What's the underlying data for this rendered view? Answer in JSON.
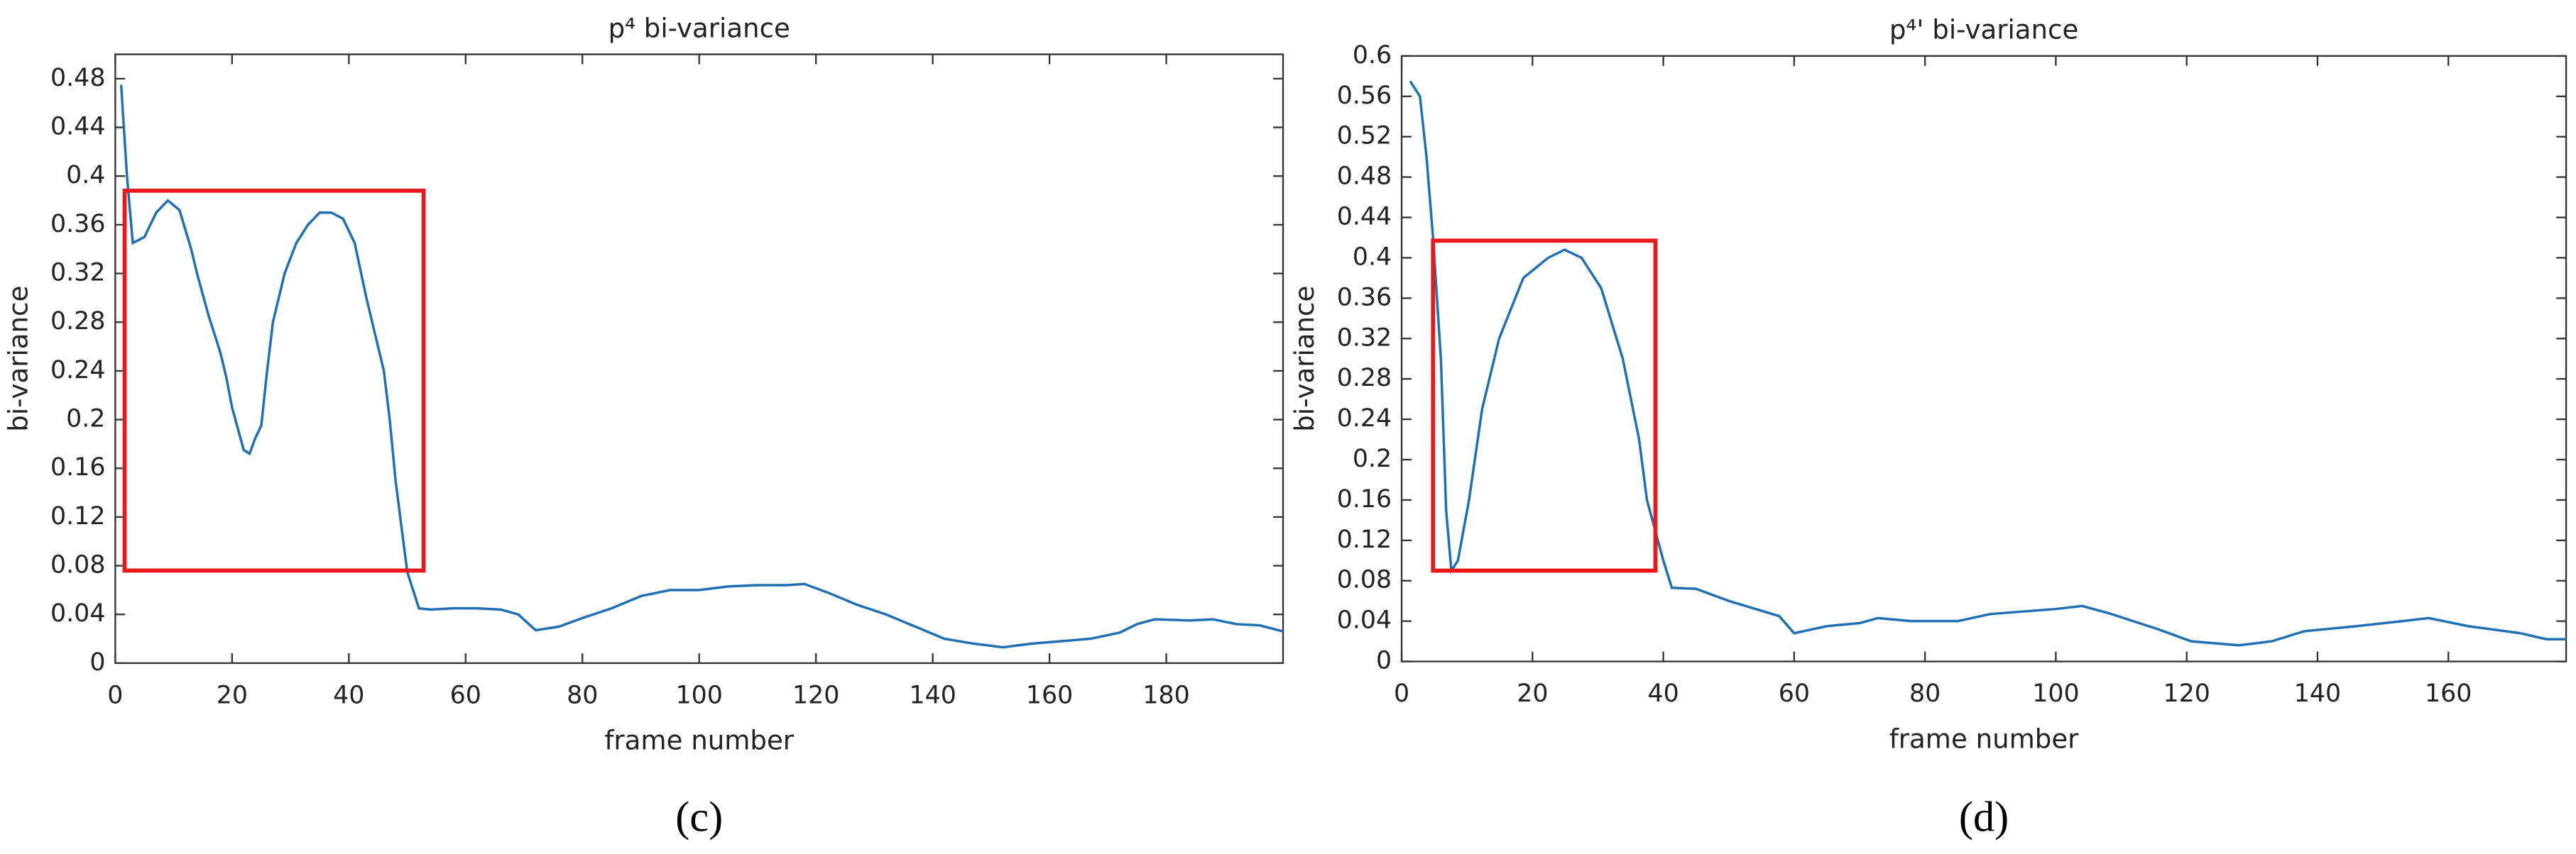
{
  "chart_data": [
    {
      "type": "line",
      "title": "p⁴ bi-variance",
      "xlabel": "frame number",
      "ylabel": "bi-variance",
      "caption": "(c)",
      "xlim": [
        0,
        200
      ],
      "xticks": [
        0,
        20,
        40,
        60,
        80,
        100,
        120,
        140,
        160,
        180
      ],
      "ylim": [
        0,
        0.5
      ],
      "yticks": [
        0,
        0.04,
        0.08,
        0.12,
        0.16,
        0.2,
        0.24,
        0.28,
        0.32,
        0.36,
        0.4,
        0.44,
        0.48
      ],
      "series": [
        {
          "color": "#1f6fb4",
          "x": [
            1,
            2,
            3,
            5,
            7,
            9,
            11,
            13,
            14,
            16,
            18,
            19,
            20,
            22,
            23,
            24,
            25,
            26,
            27,
            29,
            31,
            33,
            35,
            37,
            39,
            41,
            43,
            45,
            46,
            47,
            48,
            50,
            51,
            52,
            54,
            58,
            62,
            66,
            69,
            72,
            76,
            80,
            85,
            90,
            95,
            100,
            105,
            110,
            115,
            118,
            122,
            127,
            132,
            137,
            142,
            147,
            152,
            157,
            162,
            167,
            172,
            175,
            178,
            184,
            188,
            192,
            196,
            200
          ],
          "values": [
            0.475,
            0.4,
            0.345,
            0.35,
            0.37,
            0.38,
            0.372,
            0.34,
            0.32,
            0.285,
            0.255,
            0.235,
            0.21,
            0.175,
            0.172,
            0.185,
            0.195,
            0.24,
            0.28,
            0.32,
            0.345,
            0.36,
            0.37,
            0.37,
            0.365,
            0.345,
            0.3,
            0.26,
            0.24,
            0.2,
            0.15,
            0.075,
            0.06,
            0.045,
            0.044,
            0.045,
            0.045,
            0.044,
            0.04,
            0.027,
            0.03,
            0.037,
            0.045,
            0.055,
            0.06,
            0.06,
            0.063,
            0.064,
            0.064,
            0.065,
            0.058,
            0.048,
            0.04,
            0.03,
            0.02,
            0.016,
            0.013,
            0.016,
            0.018,
            0.02,
            0.025,
            0.032,
            0.036,
            0.035,
            0.036,
            0.032,
            0.031,
            0.026
          ]
        }
      ],
      "boxes": [
        {
          "color": "#e8191a",
          "x": [
            1.6,
            52.8
          ],
          "y": [
            0.076,
            0.388
          ]
        }
      ]
    },
    {
      "type": "line",
      "title": "p⁴' bi-variance",
      "xlabel": "frame number",
      "ylabel": "bi-variance",
      "caption": "(d)",
      "xlim": [
        0,
        178
      ],
      "xticks": [
        0,
        20,
        40,
        60,
        80,
        100,
        120,
        140,
        160
      ],
      "ylim": [
        0,
        0.6
      ],
      "yticks": [
        0,
        0.04,
        0.08,
        0.12,
        0.16,
        0.2,
        0.24,
        0.28,
        0.32,
        0.36,
        0.4,
        0.44,
        0.48,
        0.52,
        0.56,
        0.6
      ],
      "series": [
        {
          "color": "#1f6fb4",
          "x": [
            1.3,
            2.8,
            3.8,
            4.8,
            6,
            6.8,
            7.6,
            8.6,
            10.3,
            12.3,
            14.9,
            18.6,
            22.4,
            24.9,
            27.5,
            30.5,
            33.8,
            36.3,
            37.5,
            40,
            41.3,
            45,
            50,
            57.7,
            60,
            65,
            70,
            72.8,
            77.8,
            85,
            90,
            100,
            104,
            108,
            115.6,
            120.7,
            128,
            133,
            138,
            146,
            153,
            157,
            163,
            171,
            175,
            178
          ],
          "values": [
            0.575,
            0.56,
            0.5,
            0.42,
            0.3,
            0.15,
            0.09,
            0.1,
            0.16,
            0.25,
            0.32,
            0.38,
            0.4,
            0.408,
            0.4,
            0.37,
            0.3,
            0.22,
            0.16,
            0.1,
            0.073,
            0.072,
            0.06,
            0.045,
            0.028,
            0.035,
            0.038,
            0.043,
            0.04,
            0.04,
            0.047,
            0.052,
            0.055,
            0.048,
            0.032,
            0.02,
            0.016,
            0.02,
            0.03,
            0.035,
            0.04,
            0.043,
            0.035,
            0.028,
            0.022,
            0.022
          ]
        }
      ],
      "boxes": [
        {
          "color": "#e8191a",
          "x": [
            4.8,
            38.8
          ],
          "y": [
            0.09,
            0.417
          ]
        }
      ]
    }
  ]
}
